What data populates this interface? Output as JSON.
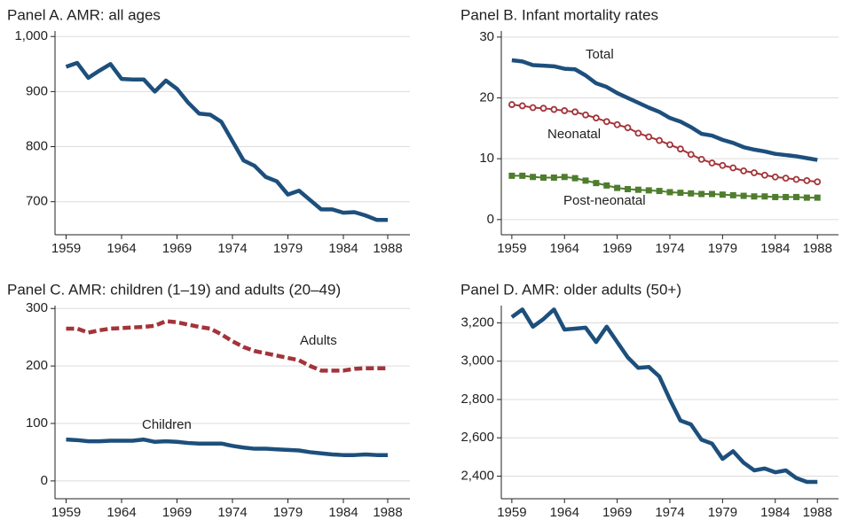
{
  "chart_data": [
    {
      "type": "line",
      "title": "Panel A. AMR: all ages",
      "x": [
        1959,
        1960,
        1961,
        1962,
        1963,
        1964,
        1965,
        1966,
        1967,
        1968,
        1969,
        1970,
        1971,
        1972,
        1973,
        1974,
        1975,
        1976,
        1977,
        1978,
        1979,
        1980,
        1981,
        1982,
        1983,
        1984,
        1985,
        1986,
        1987,
        1988
      ],
      "values": [
        945,
        952,
        925,
        938,
        950,
        923,
        922,
        922,
        900,
        920,
        905,
        880,
        860,
        858,
        845,
        810,
        775,
        765,
        745,
        737,
        713,
        720,
        703,
        686,
        686,
        680,
        681,
        675,
        667,
        667
      ],
      "color": "#1d4f7c",
      "xlim": [
        1958,
        1990
      ],
      "xticks": [
        1959,
        1964,
        1969,
        1974,
        1979,
        1984,
        1988
      ],
      "ylim": [
        640,
        1010
      ],
      "yticks": [
        {
          "value": 1000,
          "label": "1,000"
        },
        900,
        800,
        700
      ],
      "grid": true
    },
    {
      "type": "line",
      "title": "Panel B. Infant mortality rates",
      "x": [
        1959,
        1960,
        1961,
        1962,
        1963,
        1964,
        1965,
        1966,
        1967,
        1968,
        1969,
        1970,
        1971,
        1972,
        1973,
        1974,
        1975,
        1976,
        1977,
        1978,
        1979,
        1980,
        1981,
        1982,
        1983,
        1984,
        1985,
        1986,
        1987,
        1988
      ],
      "series": [
        {
          "name": "Total",
          "color": "#1d4f7c",
          "values": [
            26.2,
            26,
            25.4,
            25.3,
            25.2,
            24.8,
            24.7,
            23.7,
            22.4,
            21.8,
            20.8,
            20.0,
            19.2,
            18.4,
            17.7,
            16.7,
            16.1,
            15.2,
            14.1,
            13.8,
            13.1,
            12.6,
            11.9,
            11.5,
            11.2,
            10.8,
            10.6,
            10.4,
            10.1,
            9.8
          ]
        },
        {
          "name": "Neonatal",
          "color": "#a3343a",
          "marker": "circle",
          "values": [
            18.9,
            18.7,
            18.4,
            18.3,
            18.1,
            17.9,
            17.7,
            17.2,
            16.7,
            16.1,
            15.6,
            15.1,
            14.2,
            13.6,
            13.0,
            12.3,
            11.6,
            10.7,
            9.9,
            9.3,
            8.9,
            8.5,
            8.0,
            7.7,
            7.3,
            7.0,
            6.8,
            6.6,
            6.4,
            6.2
          ]
        },
        {
          "name": "Post-neonatal",
          "color": "#4f7d2e",
          "marker": "square",
          "values": [
            7.2,
            7.2,
            7.0,
            6.9,
            6.9,
            7.0,
            6.8,
            6.4,
            6.0,
            5.6,
            5.2,
            5.0,
            4.9,
            4.8,
            4.7,
            4.5,
            4.4,
            4.3,
            4.2,
            4.2,
            4.1,
            4.0,
            3.9,
            3.8,
            3.8,
            3.7,
            3.7,
            3.7,
            3.6,
            3.6
          ]
        }
      ],
      "xlim": [
        1958,
        1990
      ],
      "xticks": [
        1959,
        1964,
        1969,
        1974,
        1979,
        1984,
        1988
      ],
      "ylim": [
        -2.5,
        31
      ],
      "yticks": [
        30,
        20,
        10,
        0
      ],
      "grid": true
    },
    {
      "type": "line",
      "title": "Panel C. AMR: children (1–19) and adults (20–49)",
      "x": [
        1959,
        1960,
        1961,
        1962,
        1963,
        1964,
        1965,
        1966,
        1967,
        1968,
        1969,
        1970,
        1971,
        1972,
        1973,
        1974,
        1975,
        1976,
        1977,
        1978,
        1979,
        1980,
        1981,
        1982,
        1983,
        1984,
        1985,
        1986,
        1987,
        1988
      ],
      "series": [
        {
          "name": "Adults",
          "color": "#a3343a",
          "dash": true,
          "values": [
            265,
            265,
            258,
            262,
            265,
            266,
            267,
            268,
            270,
            278,
            276,
            272,
            268,
            265,
            255,
            243,
            233,
            226,
            222,
            218,
            214,
            210,
            200,
            192,
            192,
            192,
            195,
            196,
            196,
            196
          ]
        },
        {
          "name": "Children",
          "color": "#1d4f7c",
          "values": [
            72,
            71,
            69,
            69,
            70,
            70,
            70,
            72,
            68,
            69,
            68,
            66,
            65,
            65,
            65,
            61,
            58,
            56,
            56,
            55,
            54,
            53,
            50,
            48,
            46,
            45,
            45,
            46,
            45,
            45
          ]
        }
      ],
      "xlim": [
        1958,
        1990
      ],
      "xticks": [
        1959,
        1964,
        1969,
        1974,
        1979,
        1984,
        1988
      ],
      "ylim": [
        -31,
        305
      ],
      "yticks": [
        300,
        200,
        100,
        0
      ],
      "grid": true
    },
    {
      "type": "line",
      "title": "Panel D. AMR: older adults (50+)",
      "x": [
        1959,
        1960,
        1961,
        1962,
        1963,
        1964,
        1965,
        1966,
        1967,
        1968,
        1969,
        1970,
        1971,
        1972,
        1973,
        1974,
        1975,
        1976,
        1977,
        1978,
        1979,
        1980,
        1981,
        1982,
        1983,
        1984,
        1985,
        1986,
        1987,
        1988
      ],
      "values": [
        3230,
        3270,
        3180,
        3220,
        3270,
        3165,
        3170,
        3175,
        3100,
        3180,
        3100,
        3020,
        2965,
        2970,
        2920,
        2800,
        2690,
        2670,
        2590,
        2570,
        2490,
        2530,
        2470,
        2430,
        2440,
        2420,
        2430,
        2390,
        2370,
        2370
      ],
      "color": "#1d4f7c",
      "xlim": [
        1958,
        1990
      ],
      "xticks": [
        1959,
        1964,
        1969,
        1974,
        1979,
        1984,
        1988
      ],
      "ylim": [
        2282,
        3290
      ],
      "yticks": [
        {
          "value": 3200,
          "label": "3,200"
        },
        {
          "value": 3000,
          "label": "3,000"
        },
        {
          "value": 2800,
          "label": "2,800"
        },
        {
          "value": 2600,
          "label": "2,600"
        },
        {
          "value": 2400,
          "label": "2,400"
        }
      ],
      "grid": true
    }
  ]
}
